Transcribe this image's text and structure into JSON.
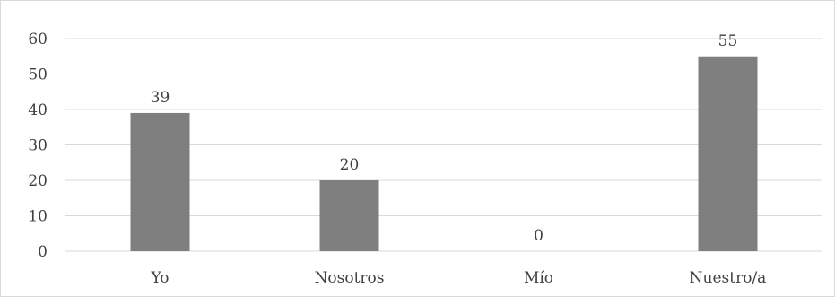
{
  "chart_data": {
    "type": "bar",
    "title": "",
    "xlabel": "",
    "ylabel": "",
    "categories": [
      "Yo",
      "Nosotros",
      "Mío",
      "Nuestro/a"
    ],
    "values": [
      39,
      20,
      0,
      55
    ],
    "ylim": [
      0,
      60
    ],
    "yticks": [
      0,
      10,
      20,
      30,
      40,
      50,
      60
    ],
    "grid": true,
    "legend": "none",
    "bar_color": "#7f7f7f"
  }
}
